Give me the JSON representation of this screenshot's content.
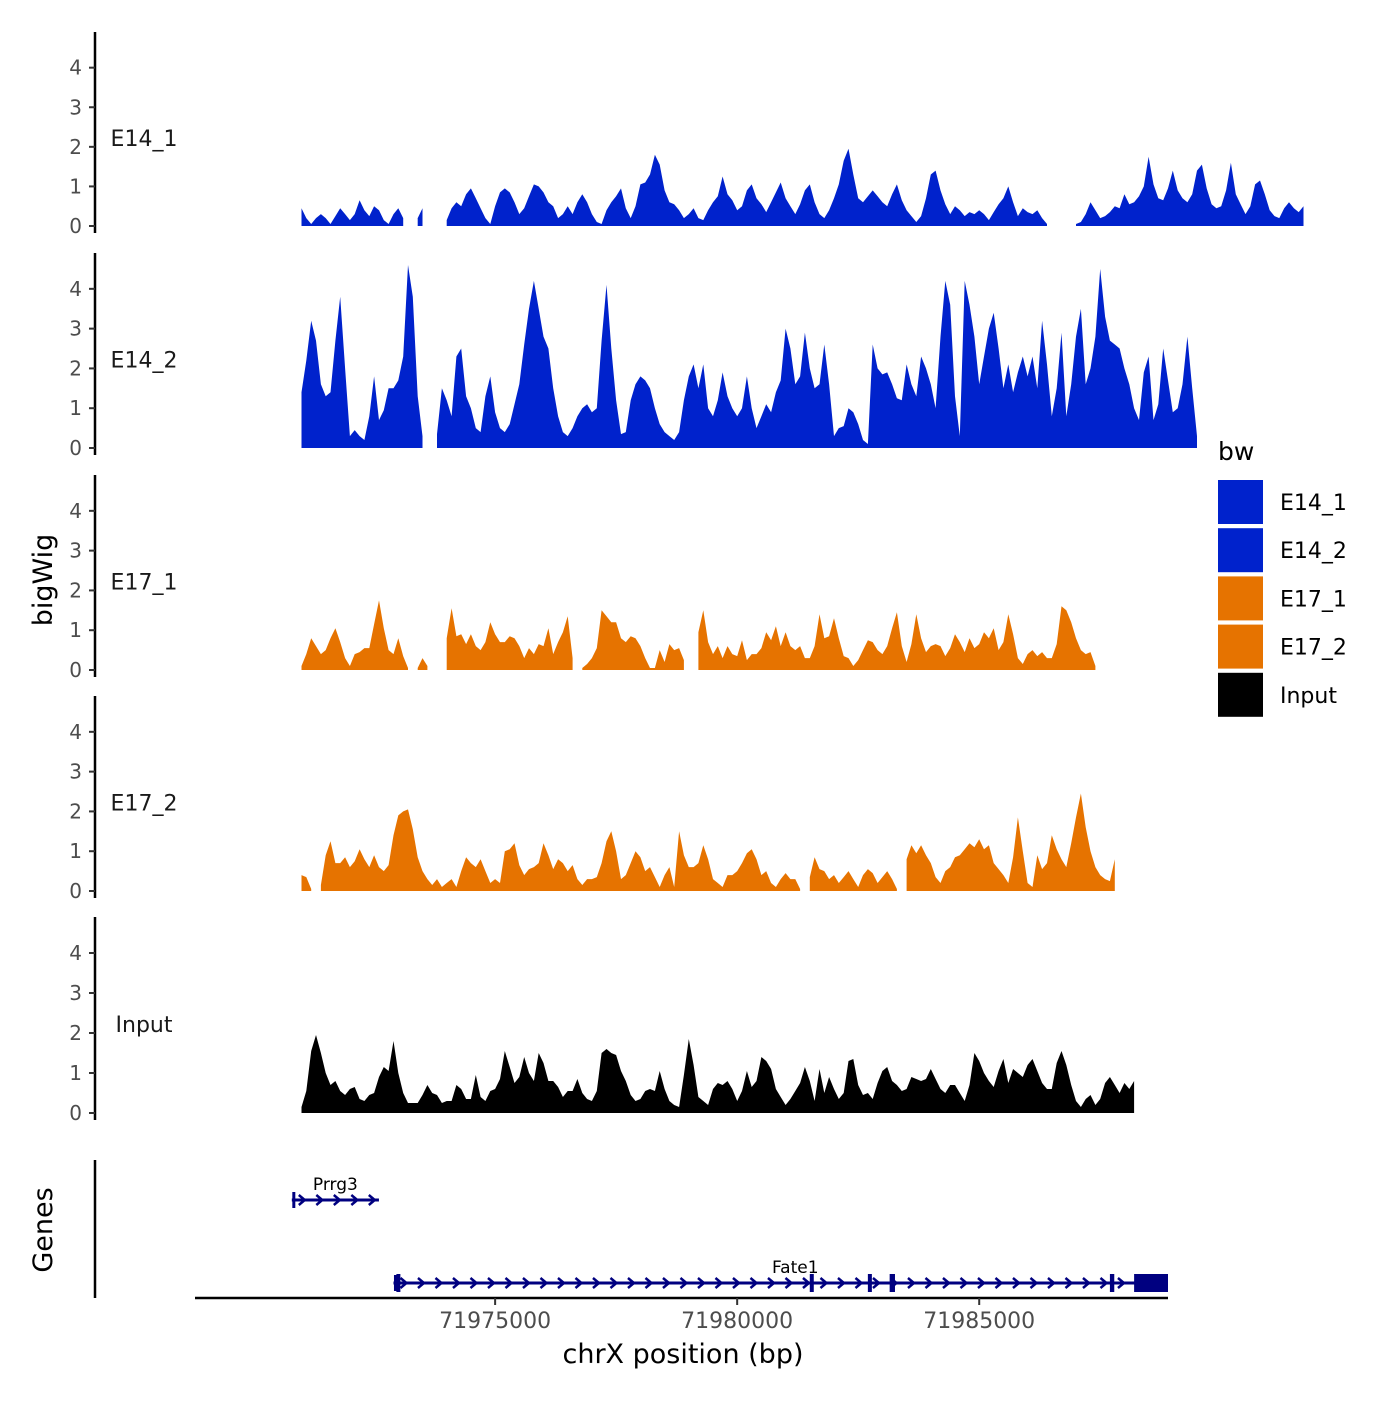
{
  "chart_data": {
    "type": "area",
    "title": "",
    "ylabel": "bigWig",
    "xlabel": "chrX position (bp)",
    "genes_label": "Genes",
    "xlim": [
      71968800,
      71988900
    ],
    "ylim": [
      0,
      4.8
    ],
    "y_ticks": [
      0,
      1,
      2,
      3,
      4
    ],
    "x_ticks": [
      71975000,
      71980000,
      71985000
    ],
    "x_tick_labels": [
      "71975000",
      "71980000",
      "71985000"
    ],
    "legend": {
      "title": "bw",
      "position": "right",
      "entries": [
        {
          "label": "E14_1",
          "color": "#0022CC"
        },
        {
          "label": "E14_2",
          "color": "#0022CC"
        },
        {
          "label": "E17_1",
          "color": "#E67300"
        },
        {
          "label": "E17_2",
          "color": "#E67300"
        },
        {
          "label": "Input",
          "color": "#000000"
        }
      ]
    },
    "x_start": 71971000,
    "x_step": 100,
    "series": [
      {
        "name": "E14_1",
        "color": "#0022CC",
        "values": [
          0.45,
          0.2,
          0.05,
          0.2,
          0.3,
          0.2,
          0.05,
          0.25,
          0.45,
          0.3,
          0.15,
          0.3,
          0.65,
          0.4,
          0.25,
          0.5,
          0.4,
          0.15,
          0.05,
          0.3,
          0.45,
          0.2,
          null,
          null,
          0.2,
          0.45,
          null,
          null,
          null,
          null,
          0.15,
          0.45,
          0.6,
          0.5,
          0.8,
          0.95,
          0.7,
          0.45,
          0.2,
          0.05,
          0.5,
          0.85,
          0.95,
          0.85,
          0.6,
          0.3,
          0.45,
          0.75,
          1.05,
          1.0,
          0.85,
          0.6,
          0.5,
          0.2,
          0.3,
          0.5,
          0.3,
          0.6,
          0.8,
          0.6,
          0.3,
          0.1,
          0.05,
          0.4,
          0.6,
          0.75,
          0.95,
          0.45,
          0.2,
          0.5,
          1.05,
          1.1,
          1.3,
          1.8,
          1.55,
          0.9,
          0.6,
          0.55,
          0.4,
          0.2,
          0.3,
          0.45,
          0.2,
          0.15,
          0.4,
          0.6,
          0.75,
          1.25,
          0.8,
          0.65,
          0.4,
          0.5,
          0.9,
          1.05,
          0.7,
          0.55,
          0.35,
          0.6,
          0.85,
          1.1,
          0.7,
          0.5,
          0.3,
          0.55,
          0.9,
          1.05,
          0.6,
          0.3,
          0.2,
          0.4,
          0.7,
          1.05,
          1.65,
          1.95,
          1.3,
          0.7,
          0.6,
          0.75,
          0.9,
          0.75,
          0.6,
          0.5,
          0.8,
          1.05,
          0.65,
          0.4,
          0.25,
          0.1,
          0.25,
          0.7,
          1.3,
          1.4,
          0.9,
          0.55,
          0.3,
          0.5,
          0.4,
          0.25,
          0.35,
          0.3,
          0.4,
          0.3,
          0.15,
          0.35,
          0.55,
          0.7,
          1.0,
          0.6,
          0.25,
          0.45,
          0.35,
          0.3,
          0.4,
          0.2,
          0.05,
          null,
          null,
          null,
          null,
          null,
          0.05,
          0.1,
          0.3,
          0.6,
          0.4,
          0.2,
          0.25,
          0.35,
          0.5,
          0.45,
          0.8,
          0.55,
          0.6,
          0.75,
          1.0,
          1.75,
          1.05,
          0.7,
          0.65,
          0.95,
          1.4,
          0.9,
          0.7,
          0.6,
          0.8,
          1.4,
          1.55,
          0.95,
          0.55,
          0.45,
          0.5,
          0.9,
          1.6,
          0.8,
          0.55,
          0.3,
          0.5,
          1.05,
          1.15,
          0.8,
          0.4,
          0.25,
          0.2,
          0.45,
          0.6,
          0.45,
          0.35,
          0.5
        ]
      },
      {
        "name": "E14_2",
        "color": "#0022CC",
        "values": [
          1.4,
          2.2,
          3.2,
          2.7,
          1.6,
          1.3,
          1.4,
          2.7,
          3.8,
          2.0,
          0.3,
          0.45,
          0.3,
          0.2,
          0.8,
          1.8,
          0.7,
          0.95,
          1.5,
          1.5,
          1.7,
          2.3,
          4.6,
          3.8,
          1.3,
          0.3,
          null,
          null,
          0.35,
          1.5,
          1.2,
          0.8,
          2.3,
          2.5,
          1.3,
          1.0,
          0.5,
          0.4,
          1.3,
          1.8,
          0.9,
          0.5,
          0.4,
          0.6,
          1.1,
          1.6,
          2.6,
          3.5,
          4.2,
          3.5,
          2.8,
          2.5,
          1.5,
          0.8,
          0.4,
          0.3,
          0.5,
          0.8,
          1.0,
          1.1,
          0.9,
          1.0,
          2.7,
          4.1,
          2.5,
          1.2,
          0.35,
          0.4,
          1.2,
          1.6,
          1.8,
          1.7,
          1.5,
          1.0,
          0.6,
          0.4,
          0.3,
          0.2,
          0.4,
          1.2,
          1.8,
          2.1,
          1.5,
          2.1,
          1.0,
          0.8,
          1.2,
          1.9,
          1.3,
          1.0,
          0.8,
          1.0,
          1.8,
          1.0,
          0.5,
          0.8,
          1.1,
          0.9,
          1.4,
          1.7,
          3.0,
          2.5,
          1.6,
          1.8,
          2.9,
          2.0,
          1.5,
          1.6,
          2.6,
          1.6,
          0.3,
          0.5,
          0.55,
          1.0,
          0.9,
          0.6,
          0.2,
          0.1,
          2.6,
          2.0,
          1.85,
          1.9,
          1.6,
          1.25,
          1.2,
          2.1,
          1.6,
          1.3,
          2.3,
          2.0,
          1.6,
          1.0,
          2.8,
          4.2,
          3.6,
          1.3,
          0.3,
          4.2,
          3.6,
          2.8,
          1.6,
          2.3,
          3.0,
          3.4,
          2.5,
          1.5,
          2.1,
          1.4,
          1.9,
          2.3,
          1.8,
          2.3,
          1.5,
          3.2,
          2.1,
          0.8,
          1.5,
          2.9,
          0.8,
          1.6,
          2.8,
          3.5,
          1.6,
          2.0,
          2.8,
          4.5,
          3.3,
          2.7,
          2.6,
          2.5,
          2.0,
          1.6,
          1.0,
          0.7,
          1.9,
          2.3,
          0.7,
          1.1,
          2.5,
          1.7,
          0.9,
          1.0,
          1.6,
          2.8,
          1.5,
          0.3
        ]
      },
      {
        "name": "E17_1",
        "color": "#E67300",
        "values": [
          0.1,
          0.4,
          0.8,
          0.6,
          0.4,
          0.5,
          0.8,
          1.05,
          0.7,
          0.3,
          0.1,
          0.4,
          0.45,
          0.55,
          0.55,
          1.15,
          1.75,
          1.05,
          0.5,
          0.4,
          0.8,
          0.35,
          0.05,
          null,
          0.05,
          0.3,
          0.1,
          null,
          null,
          null,
          0.8,
          1.55,
          0.85,
          0.9,
          0.65,
          0.9,
          0.6,
          0.5,
          0.7,
          1.2,
          0.9,
          0.7,
          0.7,
          0.85,
          0.8,
          0.6,
          0.3,
          0.55,
          0.4,
          0.65,
          0.6,
          1.05,
          0.4,
          0.7,
          0.95,
          1.35,
          0.3,
          null,
          0.05,
          0.15,
          0.3,
          0.55,
          1.5,
          1.35,
          1.2,
          1.2,
          0.8,
          0.7,
          0.85,
          0.8,
          0.6,
          0.3,
          0.05,
          0.05,
          0.5,
          0.2,
          0.65,
          0.5,
          0.55,
          0.25,
          null,
          null,
          0.95,
          1.5,
          0.7,
          0.4,
          0.6,
          0.3,
          0.6,
          0.4,
          0.35,
          0.75,
          0.25,
          0.4,
          0.4,
          0.55,
          0.95,
          0.75,
          1.1,
          0.6,
          0.95,
          0.6,
          0.5,
          0.6,
          0.3,
          0.3,
          0.6,
          1.4,
          0.8,
          0.85,
          1.3,
          0.8,
          0.35,
          0.3,
          0.1,
          0.25,
          0.5,
          0.75,
          0.7,
          0.5,
          0.4,
          0.6,
          1.05,
          1.45,
          0.6,
          0.2,
          0.65,
          1.4,
          0.8,
          0.45,
          0.6,
          0.65,
          0.6,
          0.35,
          0.55,
          0.9,
          0.7,
          0.45,
          0.8,
          0.55,
          0.65,
          0.95,
          0.8,
          1.05,
          0.5,
          0.7,
          1.4,
          0.9,
          0.3,
          0.15,
          0.4,
          0.5,
          0.35,
          0.45,
          0.3,
          0.3,
          0.65,
          1.6,
          1.5,
          1.2,
          0.8,
          0.5,
          0.4,
          0.45,
          0.1
        ]
      },
      {
        "name": "E17_2",
        "color": "#E67300",
        "values": [
          0.4,
          0.35,
          0.05,
          null,
          0.15,
          0.9,
          1.25,
          0.7,
          0.7,
          0.85,
          0.6,
          0.75,
          1.05,
          0.8,
          0.6,
          0.9,
          0.6,
          0.5,
          0.65,
          1.4,
          1.9,
          2.0,
          2.05,
          1.55,
          0.85,
          0.5,
          0.3,
          0.15,
          0.3,
          0.1,
          0.2,
          0.3,
          0.1,
          0.5,
          0.85,
          0.7,
          0.6,
          0.8,
          0.5,
          0.2,
          0.3,
          0.2,
          1.0,
          1.05,
          1.2,
          0.65,
          0.4,
          0.55,
          0.6,
          0.7,
          1.2,
          0.9,
          0.55,
          0.8,
          0.7,
          0.5,
          0.65,
          0.3,
          0.15,
          0.3,
          0.3,
          0.35,
          0.7,
          1.25,
          1.5,
          1.0,
          0.3,
          0.4,
          0.7,
          1.0,
          0.85,
          0.5,
          0.6,
          0.35,
          0.1,
          0.4,
          0.6,
          0.1,
          1.5,
          0.9,
          0.6,
          0.6,
          0.7,
          1.15,
          0.8,
          0.3,
          0.2,
          0.1,
          0.4,
          0.4,
          0.5,
          0.7,
          0.95,
          1.05,
          0.8,
          0.4,
          0.5,
          0.2,
          0.1,
          0.3,
          0.45,
          0.3,
          0.3,
          0.05,
          null,
          0.35,
          0.85,
          0.55,
          0.5,
          0.3,
          0.4,
          0.2,
          0.35,
          0.5,
          0.3,
          0.1,
          0.4,
          0.55,
          0.45,
          0.2,
          0.35,
          0.5,
          0.3,
          0.05,
          null,
          0.8,
          1.15,
          0.95,
          1.15,
          0.9,
          0.7,
          0.35,
          0.2,
          0.5,
          0.6,
          0.85,
          0.9,
          1.05,
          1.2,
          1.1,
          1.3,
          1.05,
          1.15,
          0.7,
          0.55,
          0.4,
          0.2,
          0.85,
          1.85,
          1.0,
          0.2,
          0.1,
          0.9,
          0.55,
          0.7,
          1.4,
          1.05,
          0.8,
          0.6,
          1.2,
          1.85,
          2.45,
          1.6,
          1.0,
          0.6,
          0.4,
          0.3,
          0.25,
          0.8
        ]
      },
      {
        "name": "Input",
        "color": "#000000",
        "values": [
          0.15,
          0.55,
          1.55,
          1.95,
          1.5,
          1.0,
          0.7,
          0.8,
          0.55,
          0.45,
          0.6,
          0.65,
          0.35,
          0.3,
          0.45,
          0.5,
          0.9,
          1.15,
          1.05,
          1.8,
          1.0,
          0.5,
          0.25,
          0.25,
          0.25,
          0.45,
          0.7,
          0.5,
          0.45,
          0.25,
          0.3,
          0.3,
          0.7,
          0.6,
          0.35,
          0.35,
          0.95,
          0.4,
          0.3,
          0.55,
          0.6,
          0.85,
          1.55,
          1.15,
          0.75,
          0.9,
          1.4,
          1.0,
          0.8,
          1.5,
          1.25,
          0.8,
          0.8,
          0.65,
          0.4,
          0.55,
          0.55,
          0.85,
          0.5,
          0.35,
          0.3,
          0.55,
          1.5,
          1.6,
          1.5,
          1.45,
          1.05,
          0.8,
          0.45,
          0.3,
          0.35,
          0.55,
          0.6,
          0.55,
          1.05,
          0.6,
          0.3,
          0.2,
          0.15,
          0.95,
          1.85,
          1.2,
          0.4,
          0.3,
          0.2,
          0.6,
          0.75,
          0.7,
          0.8,
          0.6,
          0.3,
          0.55,
          1.05,
          0.65,
          0.8,
          1.4,
          1.3,
          1.1,
          0.6,
          0.4,
          0.2,
          0.35,
          0.55,
          0.75,
          1.15,
          0.8,
          0.3,
          1.1,
          0.5,
          0.9,
          0.6,
          0.35,
          0.5,
          1.3,
          1.35,
          0.7,
          0.45,
          0.5,
          0.35,
          0.75,
          1.05,
          1.15,
          0.8,
          0.7,
          0.55,
          0.6,
          0.9,
          0.85,
          0.8,
          0.85,
          1.1,
          0.85,
          0.6,
          0.5,
          0.7,
          0.7,
          0.5,
          0.3,
          0.7,
          1.5,
          1.3,
          1.0,
          0.8,
          0.65,
          1.05,
          1.35,
          0.75,
          1.1,
          1.0,
          0.9,
          1.2,
          1.35,
          1.05,
          0.75,
          0.6,
          0.6,
          1.25,
          1.55,
          1.2,
          0.7,
          0.3,
          0.15,
          0.35,
          0.45,
          0.2,
          0.35,
          0.75,
          0.9,
          0.7,
          0.5,
          0.75,
          0.6,
          0.8
        ]
      }
    ],
    "genes": [
      {
        "name": "Prrg3",
        "strand": "+",
        "start": 71970800,
        "end": 71972600,
        "exons": [],
        "utr": []
      },
      {
        "name": "Fate1",
        "strand": "+",
        "start": 71972900,
        "end": 71988900,
        "exons": [
          [
            71972960,
            71973020
          ],
          [
            71981500,
            71981560
          ],
          [
            71982700,
            71982760
          ],
          [
            71983150,
            71983260
          ],
          [
            71987700,
            71987790
          ]
        ],
        "utr": [
          [
            71988200,
            71988900
          ]
        ]
      }
    ]
  }
}
